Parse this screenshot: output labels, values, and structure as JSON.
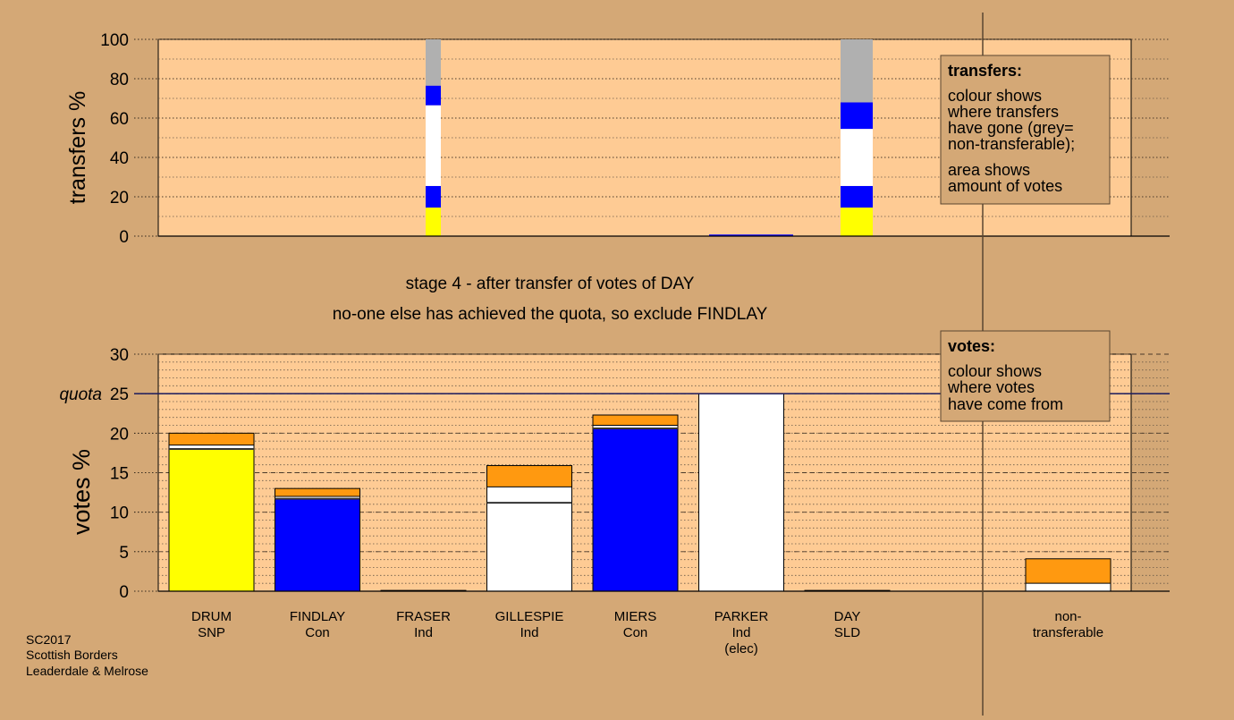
{
  "colors": {
    "background": "#d4a876",
    "plot_background": "#fecb94",
    "snp": "#ffff00",
    "con": "#0000ff",
    "ind": "#ffffff",
    "sld": "#ff9910",
    "non_transferable": "#b0b0b0",
    "axis": "#000000"
  },
  "stage_text": {
    "line1": "stage 4 - after transfer of votes of DAY",
    "line2": "no-one else has achieved the quota, so exclude FINDLAY"
  },
  "footer": {
    "line1": "SC2017",
    "line2": "Scottish Borders",
    "line3": "Leaderdale & Melrose"
  },
  "chart_data": [
    {
      "type": "bar",
      "stacked": true,
      "ylabel": "transfers %",
      "ylim": [
        0,
        100
      ],
      "yticks": [
        0,
        20,
        40,
        60,
        80,
        100
      ],
      "categories": [
        "DRUM",
        "FINDLAY",
        "FRASER",
        "GILLESPIE",
        "MIERS",
        "PARKER",
        "DAY",
        "non-transferable"
      ],
      "bars": [
        {
          "category": "FRASER",
          "segments": [
            {
              "color": "snp",
              "from": 0,
              "to": 14.5
            },
            {
              "color": "con",
              "from": 14.5,
              "to": 25.5
            },
            {
              "color": "ind",
              "from": 25.5,
              "to": 66.5
            },
            {
              "color": "con",
              "from": 66.5,
              "to": 76.5
            },
            {
              "color": "non_transferable",
              "from": 76.5,
              "to": 100
            }
          ]
        },
        {
          "category": "PARKER",
          "segments": [
            {
              "color": "con",
              "from": 0,
              "to": 0.8
            }
          ]
        },
        {
          "category": "DAY",
          "segments": [
            {
              "color": "snp",
              "from": 0,
              "to": 14.5
            },
            {
              "color": "con",
              "from": 14.5,
              "to": 25.5
            },
            {
              "color": "ind",
              "from": 25.5,
              "to": 54.5
            },
            {
              "color": "con",
              "from": 54.5,
              "to": 68
            },
            {
              "color": "non_transferable",
              "from": 68,
              "to": 100
            }
          ]
        }
      ],
      "legend": {
        "title": "transfers:",
        "lines": [
          "colour shows",
          "where transfers",
          "have gone (grey=",
          "non-transferable);"
        ],
        "lines2": [
          "area shows",
          "amount of votes"
        ]
      }
    },
    {
      "type": "bar",
      "stacked": true,
      "ylabel": "votes %",
      "ylim": [
        0,
        30
      ],
      "yticks": [
        0,
        5,
        10,
        15,
        20,
        25,
        30
      ],
      "quota": 25,
      "quota_label": "quota",
      "categories": [
        {
          "name": "DRUM",
          "party": "SNP",
          "extra": ""
        },
        {
          "name": "FINDLAY",
          "party": "Con",
          "extra": ""
        },
        {
          "name": "FRASER",
          "party": "Ind",
          "extra": ""
        },
        {
          "name": "GILLESPIE",
          "party": "Ind",
          "extra": ""
        },
        {
          "name": "MIERS",
          "party": "Con",
          "extra": ""
        },
        {
          "name": "PARKER",
          "party": "Ind",
          "extra": "(elec)"
        },
        {
          "name": "DAY",
          "party": "SLD",
          "extra": ""
        },
        {
          "name": "non-",
          "party": "transferable",
          "extra": ""
        }
      ],
      "bars": [
        {
          "category": "DRUM",
          "dividers": [
            18
          ],
          "segments": [
            {
              "color": "snp",
              "from": 0,
              "to": 18
            },
            {
              "color": "ind",
              "from": 18,
              "to": 18.5
            },
            {
              "color": "sld",
              "from": 18.5,
              "to": 20
            }
          ]
        },
        {
          "category": "FINDLAY",
          "dividers": [
            11.7
          ],
          "segments": [
            {
              "color": "con",
              "from": 0,
              "to": 11.7
            },
            {
              "color": "ind",
              "from": 11.7,
              "to": 12
            },
            {
              "color": "sld",
              "from": 12,
              "to": 13
            }
          ]
        },
        {
          "category": "FRASER",
          "dividers": [],
          "segments": [
            {
              "color": "ind",
              "from": 0,
              "to": 0.1
            }
          ]
        },
        {
          "category": "GILLESPIE",
          "dividers": [
            11.2
          ],
          "segments": [
            {
              "color": "ind",
              "from": 0,
              "to": 13.2
            },
            {
              "color": "sld",
              "from": 13.2,
              "to": 15.9
            }
          ]
        },
        {
          "category": "MIERS",
          "dividers": [
            20.6
          ],
          "segments": [
            {
              "color": "con",
              "from": 0,
              "to": 20.6
            },
            {
              "color": "ind",
              "from": 20.6,
              "to": 21
            },
            {
              "color": "sld",
              "from": 21,
              "to": 22.3
            }
          ]
        },
        {
          "category": "PARKER",
          "dividers": [],
          "segments": [
            {
              "color": "ind",
              "from": 0,
              "to": 25
            }
          ]
        },
        {
          "category": "DAY",
          "dividers": [],
          "segments": [
            {
              "color": "sld",
              "from": 0,
              "to": 0.1
            }
          ]
        },
        {
          "category": "non-transferable",
          "dividers": [],
          "segments": [
            {
              "color": "ind",
              "from": 0,
              "to": 1
            },
            {
              "color": "sld",
              "from": 1,
              "to": 4.1
            }
          ]
        }
      ],
      "legend": {
        "title": "votes:",
        "lines": [
          "colour shows",
          "where votes",
          "have come from"
        ]
      }
    }
  ]
}
